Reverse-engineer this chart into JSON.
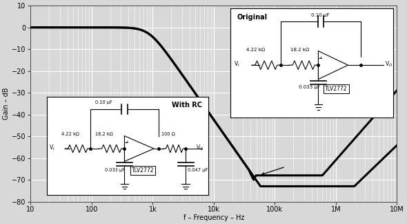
{
  "xlabel": "f – Frequency – Hz",
  "ylabel": "Gain – dB",
  "ylim": [
    -80,
    10
  ],
  "yticks": [
    10,
    0,
    -10,
    -20,
    -30,
    -40,
    -50,
    -60,
    -70,
    -80
  ],
  "xtick_labels": [
    "10",
    "100",
    "1k",
    "10k",
    "100k",
    "1M",
    "10M"
  ],
  "xtick_vals": [
    10,
    100,
    1000,
    10000,
    100000,
    1000000,
    10000000
  ],
  "bg_color": "#d8d8d8",
  "plot_bg": "#d8d8d8",
  "line_color": "#000000",
  "grid_color": "#ffffff",
  "orig_inset": {
    "label": "Original",
    "R1": "4.22 kΩ",
    "R2": "18.2 kΩ",
    "C1": "0.033 μF",
    "C2": "0.10 μF",
    "ic": "TLV2772"
  },
  "rc_inset": {
    "label": "With RC",
    "R1": "4.22 kΩ",
    "R2": "18.2 kΩ",
    "C1": "0.033 μF",
    "C2": "0.10 μF",
    "R3": "100 Ω",
    "C3": "0.047 μF",
    "ic": "TLV2772"
  }
}
